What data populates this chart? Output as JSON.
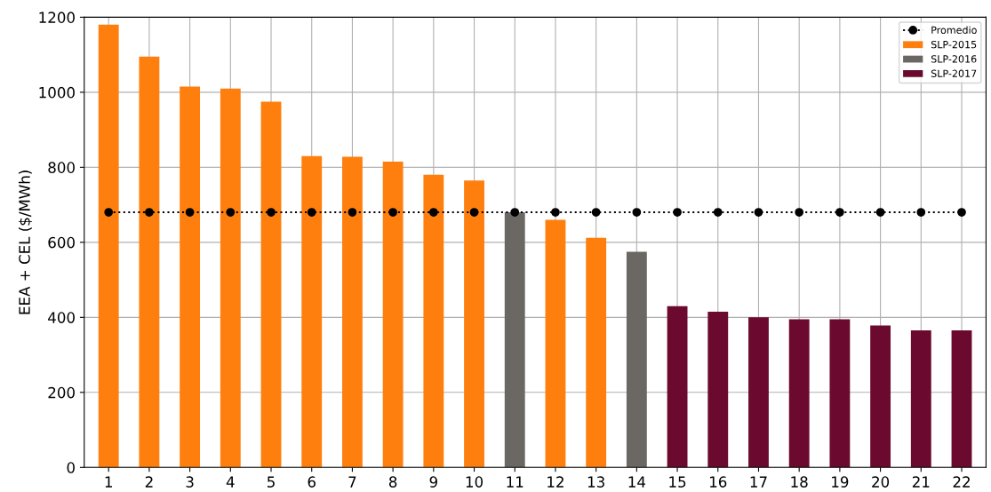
{
  "chart_data": {
    "type": "bar",
    "ylabel": "EEA + CEL ($/MWh)",
    "categories": [
      "1",
      "2",
      "3",
      "4",
      "5",
      "6",
      "7",
      "8",
      "9",
      "10",
      "11",
      "12",
      "13",
      "14",
      "15",
      "16",
      "17",
      "18",
      "19",
      "20",
      "21",
      "22"
    ],
    "series": [
      {
        "name": "Promedio",
        "type": "line",
        "color": "#000000",
        "marker": "circle",
        "line_style": "dotted",
        "values": [
          680,
          680,
          680,
          680,
          680,
          680,
          680,
          680,
          680,
          680,
          680,
          680,
          680,
          680,
          680,
          680,
          680,
          680,
          680,
          680,
          680,
          680
        ]
      },
      {
        "name": "SLP-2015",
        "color": "#ff7f0e",
        "values": [
          1180,
          1095,
          1015,
          1010,
          975,
          830,
          828,
          815,
          780,
          765,
          null,
          660,
          612,
          null,
          null,
          null,
          null,
          null,
          null,
          null,
          null,
          null
        ]
      },
      {
        "name": "SLP-2016",
        "color": "#6b6763",
        "values": [
          null,
          null,
          null,
          null,
          null,
          null,
          null,
          null,
          null,
          null,
          680,
          null,
          null,
          575,
          null,
          null,
          null,
          null,
          null,
          null,
          null,
          null
        ]
      },
      {
        "name": "SLP-2017",
        "color": "#6b0a2e",
        "values": [
          null,
          null,
          null,
          null,
          null,
          null,
          null,
          null,
          null,
          null,
          null,
          null,
          null,
          null,
          430,
          415,
          400,
          395,
          395,
          378,
          365,
          365
        ]
      }
    ],
    "ylim": [
      0,
      1200
    ],
    "yticks": [
      0,
      200,
      400,
      600,
      800,
      1000,
      1200
    ],
    "grid": true,
    "legend": "top right"
  }
}
